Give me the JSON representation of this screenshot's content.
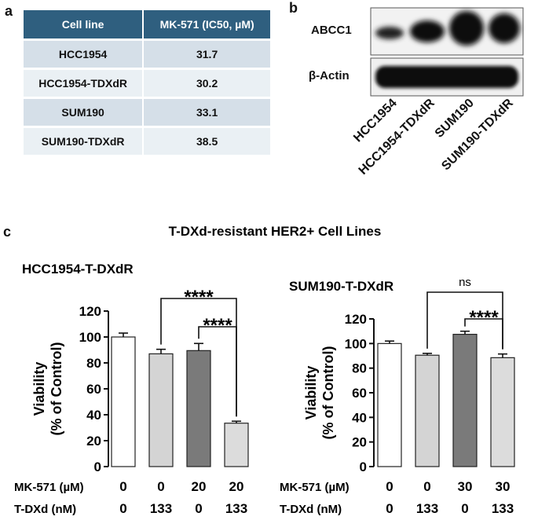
{
  "panels": {
    "a": "a",
    "b": "b",
    "c": "c"
  },
  "table": {
    "headers": [
      "Cell line",
      "MK-571 (IC50, µM)"
    ],
    "rows": [
      [
        "HCC1954",
        "31.7"
      ],
      [
        "HCC1954-TDXdR",
        "30.2"
      ],
      [
        "SUM190",
        "33.1"
      ],
      [
        "SUM190-TDXdR",
        "38.5"
      ]
    ]
  },
  "blot": {
    "rows": [
      "ABCC1",
      "β-Actin"
    ],
    "lanes": [
      "HCC1954",
      "HCC1954-TDXdR",
      "SUM190",
      "SUM190-TDXdR"
    ]
  },
  "figure_title": "T-DXd-resistant HER2+ Cell Lines",
  "chart_data": [
    {
      "type": "bar",
      "title": "HCC1954-T-DXdR",
      "ylabel": "Viability\n(% of Control)",
      "ylim": [
        0,
        120
      ],
      "yticks": [
        0,
        20,
        40,
        60,
        80,
        100,
        120
      ],
      "row_labels": [
        "MK-571 (µM)",
        "T-DXd (nM)"
      ],
      "mk571": [
        "0",
        "0",
        "20",
        "20"
      ],
      "tdxd": [
        "0",
        "133",
        "0",
        "133"
      ],
      "values": [
        100,
        87,
        89.5,
        33.5
      ],
      "errors": [
        3,
        3.5,
        5.5,
        1.5
      ],
      "colors": [
        "#ffffff",
        "#d4d4d4",
        "#7a7a7a",
        "#dcdcdc"
      ],
      "comparisons": [
        {
          "from": 1,
          "to": 3,
          "label": "****"
        },
        {
          "from": 2,
          "to": 3,
          "label": "****"
        }
      ]
    },
    {
      "type": "bar",
      "title": "SUM190-T-DXdR",
      "ylabel": "Viability\n(% of Control)",
      "ylim": [
        0,
        120
      ],
      "yticks": [
        0,
        20,
        40,
        60,
        80,
        100,
        120
      ],
      "row_labels": [
        "MK-571 (µM)",
        "T-DXd (nM)"
      ],
      "mk571": [
        "0",
        "0",
        "30",
        "30"
      ],
      "tdxd": [
        "0",
        "133",
        "0",
        "133"
      ],
      "values": [
        100,
        90.5,
        107.5,
        88.5
      ],
      "errors": [
        2,
        1.5,
        2.5,
        3
      ],
      "colors": [
        "#ffffff",
        "#d4d4d4",
        "#7a7a7a",
        "#dcdcdc"
      ],
      "comparisons": [
        {
          "from": 1,
          "to": 3,
          "label": "ns"
        },
        {
          "from": 2,
          "to": 3,
          "label": "****"
        }
      ]
    }
  ]
}
